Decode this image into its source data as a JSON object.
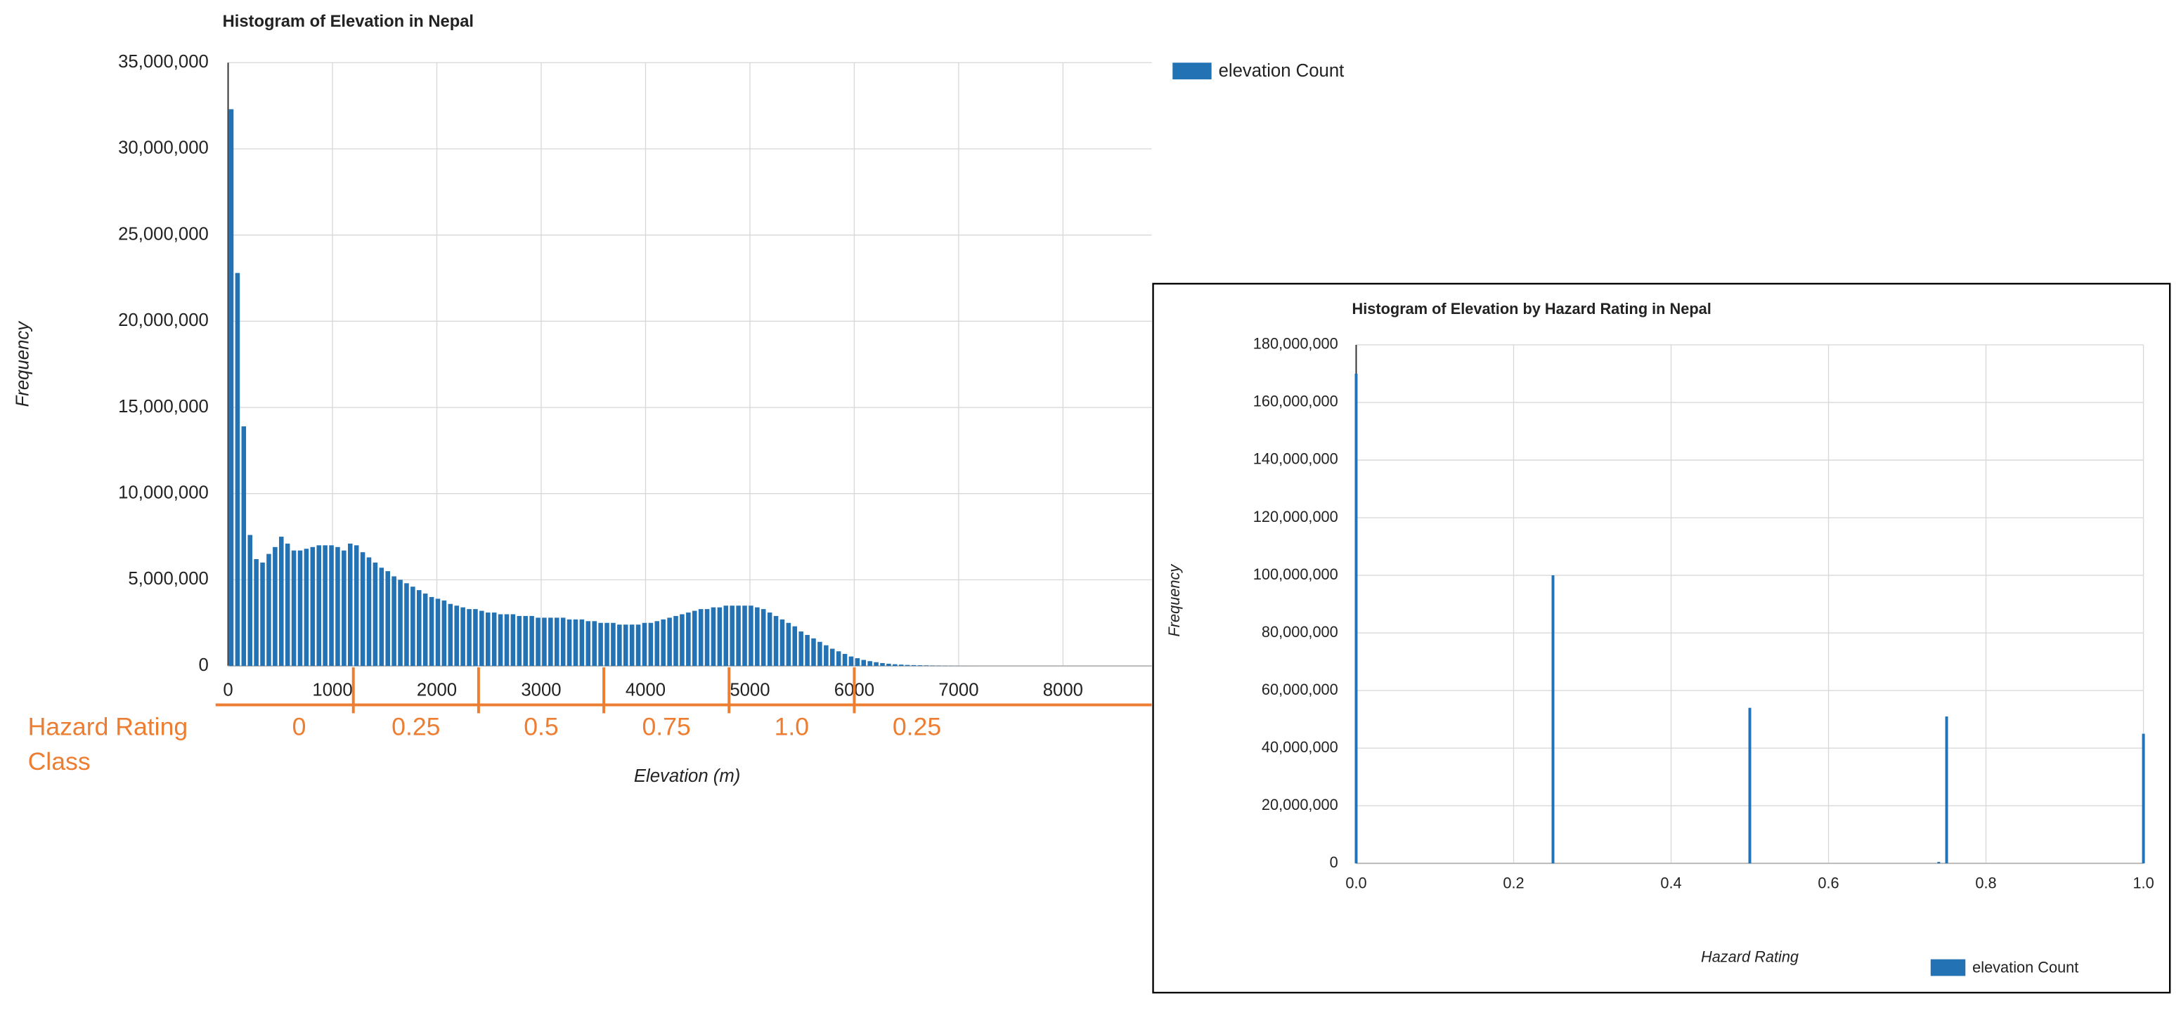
{
  "chart_data": [
    {
      "type": "histogram",
      "title": "Histogram of Elevation in Nepal",
      "x_label": "Elevation (m)",
      "y_label": "Frequency",
      "bins": [
        0,
        60,
        120,
        180,
        240,
        300,
        360,
        420,
        480,
        540,
        600,
        660,
        720,
        780,
        840,
        900,
        960,
        1020,
        1080,
        1140,
        1200,
        1260,
        1320,
        1380,
        1440,
        1500,
        1560,
        1620,
        1680,
        1740,
        1800,
        1860,
        1920,
        1980,
        2040,
        2100,
        2160,
        2220,
        2280,
        2340,
        2400,
        2460,
        2520,
        2580,
        2640,
        2700,
        2760,
        2820,
        2880,
        2940,
        3000,
        3060,
        3120,
        3180,
        3240,
        3300,
        3360,
        3420,
        3480,
        3540,
        3600,
        3660,
        3720,
        3780,
        3840,
        3900,
        3960,
        4020,
        4080,
        4140,
        4200,
        4260,
        4320,
        4380,
        4440,
        4500,
        4560,
        4620,
        4680,
        4740,
        4800,
        4860,
        4920,
        4980,
        5040,
        5100,
        5160,
        5220,
        5280,
        5340,
        5400,
        5460,
        5520,
        5580,
        5640,
        5700,
        5760,
        5820,
        5880,
        5940,
        6000,
        6060,
        6120,
        6180,
        6240,
        6300,
        6360,
        6420,
        6480,
        6540,
        6600,
        6660,
        6720,
        6780,
        6840,
        6900,
        6960,
        7020,
        7080,
        7140,
        7200
      ],
      "series": [
        {
          "name": "elevation Count",
          "color": "#2272b4",
          "values": [
            32300000,
            22800000,
            13900000,
            7600000,
            6200000,
            6000000,
            6500000,
            6900000,
            7500000,
            7100000,
            6700000,
            6700000,
            6800000,
            6900000,
            7000000,
            7000000,
            7000000,
            6900000,
            6700000,
            7100000,
            7000000,
            6600000,
            6300000,
            6000000,
            5700000,
            5500000,
            5200000,
            5000000,
            4800000,
            4600000,
            4400000,
            4200000,
            4000000,
            3900000,
            3800000,
            3600000,
            3500000,
            3400000,
            3300000,
            3300000,
            3200000,
            3100000,
            3100000,
            3000000,
            3000000,
            3000000,
            2900000,
            2900000,
            2900000,
            2800000,
            2800000,
            2800000,
            2800000,
            2800000,
            2700000,
            2700000,
            2700000,
            2600000,
            2600000,
            2500000,
            2500000,
            2500000,
            2400000,
            2400000,
            2400000,
            2400000,
            2500000,
            2500000,
            2600000,
            2700000,
            2800000,
            2900000,
            3000000,
            3100000,
            3200000,
            3300000,
            3300000,
            3400000,
            3400000,
            3500000,
            3500000,
            3500000,
            3500000,
            3500000,
            3400000,
            3300000,
            3100000,
            2900000,
            2700000,
            2500000,
            2300000,
            2000000,
            1800000,
            1600000,
            1400000,
            1200000,
            1000000,
            850000,
            700000,
            550000,
            450000,
            350000,
            280000,
            220000,
            170000,
            130000,
            100000,
            80000,
            60000,
            50000,
            40000,
            30000,
            20000,
            15000,
            10000,
            8000,
            6000,
            4000,
            3000,
            2000
          ]
        }
      ],
      "xlim": [
        0,
        8850
      ],
      "xticks": [
        0,
        1000,
        2000,
        3000,
        4000,
        5000,
        6000,
        7000,
        8000
      ],
      "ylim": [
        0,
        35000000
      ],
      "yticks": [
        0,
        {
          "value": 5000000,
          "label": "5,000,000"
        },
        {
          "value": 10000000,
          "label": "10,000,000"
        },
        {
          "value": 15000000,
          "label": "15,000,000"
        },
        {
          "value": 20000000,
          "label": "20,000,000"
        },
        {
          "value": 25000000,
          "label": "25,000,000"
        },
        {
          "value": 30000000,
          "label": "30,000,000"
        },
        {
          "value": 35000000,
          "label": "35,000,000"
        }
      ],
      "grid": true,
      "legend": "right",
      "hazard_rating_class": {
        "label_lines": [
          "Hazard Rating",
          "Class"
        ],
        "color": "#ed7d31",
        "breaks": [
          1200,
          2400,
          3600,
          4800,
          6000
        ],
        "classes": [
          "0",
          "0.25",
          "0.5",
          "0.75",
          "1.0",
          "0.25"
        ]
      }
    },
    {
      "type": "bar",
      "title": "Histogram of Elevation by Hazard Rating in Nepal",
      "x_label": "Hazard Rating",
      "y_label": "Frequency",
      "x": [
        0,
        0.25,
        0.5,
        0.74,
        0.75,
        1
      ],
      "series": [
        {
          "name": "elevation Count",
          "color": "#2272b4",
          "values": [
            170000000,
            100000000,
            54000000,
            500000,
            51000000,
            45000000
          ]
        }
      ],
      "xlim": [
        0,
        1
      ],
      "xticks": [
        {
          "value": 0,
          "label": "0.0"
        },
        {
          "value": 0.2,
          "label": "0.2"
        },
        {
          "value": 0.4,
          "label": "0.4"
        },
        {
          "value": 0.6,
          "label": "0.6"
        },
        {
          "value": 0.8,
          "label": "0.8"
        },
        {
          "value": 1,
          "label": "1.0"
        }
      ],
      "ylim": [
        0,
        180000000
      ],
      "yticks": [
        0,
        {
          "value": 20000000,
          "label": "20,000,000"
        },
        {
          "value": 40000000,
          "label": "40,000,000"
        },
        {
          "value": 60000000,
          "label": "60,000,000"
        },
        {
          "value": 80000000,
          "label": "80,000,000"
        },
        {
          "value": 100000000,
          "label": "100,000,000"
        },
        {
          "value": 120000000,
          "label": "120,000,000"
        },
        {
          "value": 140000000,
          "label": "140,000,000"
        },
        {
          "value": 160000000,
          "label": "160,000,000"
        },
        {
          "value": 180000000,
          "label": "180,000,000"
        }
      ],
      "grid": true,
      "legend": "bottom-right"
    }
  ]
}
